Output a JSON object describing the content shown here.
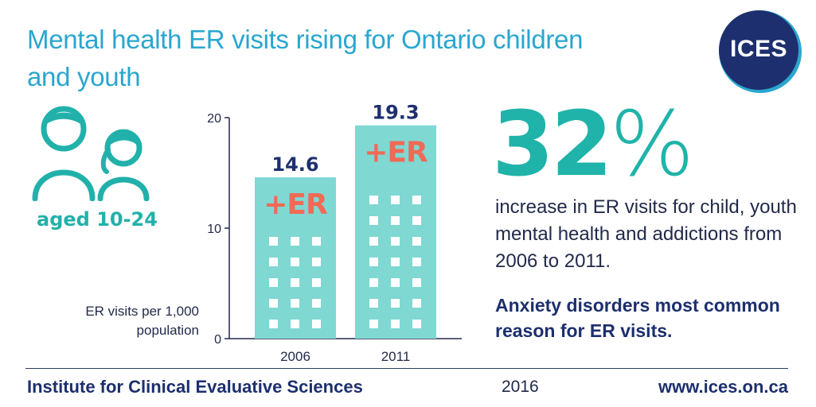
{
  "title": "Mental health ER visits rising for Ontario children and youth",
  "logo": {
    "text": "ICES"
  },
  "age_label": "aged 10-24",
  "stat": {
    "number": "32",
    "symbol": "%"
  },
  "description": "increase in ER visits for child, youth mental health and addictions from 2006 to 2011.",
  "note": "Anxiety disorders most common reason for ER visits.",
  "footer": {
    "organization": "Institute for Clinical Evaluative Sciences",
    "year": "2016",
    "url": "www.ices.on.ca"
  },
  "colors": {
    "title": "#2aa6cf",
    "teal": "#1fb3a9",
    "bar": "#7fd8d2",
    "er": "#f06a55",
    "navy": "#1d2f6e"
  },
  "chart_data": {
    "type": "bar",
    "categories": [
      "2006",
      "2011"
    ],
    "values": [
      14.6,
      19.3
    ],
    "value_labels": [
      "14.6",
      "19.3"
    ],
    "bar_badge": "+ER",
    "ylabel": "ER visits per 1,000 population",
    "ylim": [
      0,
      20
    ],
    "yticks": [
      0,
      10,
      20
    ],
    "grid": false
  }
}
